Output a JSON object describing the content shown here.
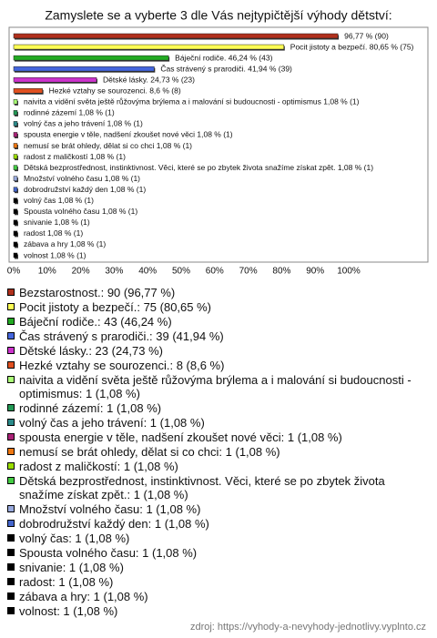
{
  "chart_data": {
    "type": "bar",
    "orientation": "horizontal",
    "title": "Zamyslete se a vyberte 3 dle Vás nejtypičtější výhody dětství:",
    "categories": [
      "Bezstarostnost.",
      "Pocit jistoty a bezpečí.",
      "Báječní rodiče.",
      "Čas strávený s prarodiči.",
      "Dětské lásky.",
      "Hezké vztahy se sourozenci.",
      "naivita a vidění světa ještě růžovýma brýlema a i malování si budoucnosti - optimismus",
      "rodinné zázemí",
      "volný čas a jeho trávení",
      "spousta energie v těle, nadšení zkoušet nové věci",
      "nemusí se brát ohledy, dělat si co chci",
      "radost z maličkostí",
      "Dětská bezprostřednost, instinktivnost. Věci, které se po zbytek života snažíme získat zpět.",
      "Množství volného času",
      "dobrodružství každý den",
      "volný čas",
      "Spousta volného času",
      "snivanie",
      "radost",
      "zábava a hry",
      "volnost"
    ],
    "values": [
      96.77,
      80.65,
      46.24,
      41.94,
      24.73,
      8.6,
      1.08,
      1.08,
      1.08,
      1.08,
      1.08,
      1.08,
      1.08,
      1.08,
      1.08,
      1.08,
      1.08,
      1.08,
      1.08,
      1.08,
      1.08
    ],
    "value_labels": [
      "96,77 % (90)",
      "Pocit jistoty a bezpečí. 80,65 % (75)",
      "Báječní rodiče. 46,24 % (43)",
      "Čas strávený s prarodiči. 41,94 % (39)",
      "Dětské lásky. 24,73 % (23)",
      "Hezké vztahy se sourozenci. 8,6 % (8)",
      "naivita a vidění světa ještě růžovýma brýlema a i malování si budoucnosti - optimismus 1,08 % (1)",
      "rodinné zázemí 1,08 % (1)",
      "volný čas a jeho trávení 1,08 % (1)",
      "spousta energie v těle, nadšení zkoušet nové věci 1,08 % (1)",
      "nemusí se brát ohledy, dělat si co chci 1,08 % (1)",
      "radost z maličkostí 1,08 % (1)",
      "Dětská bezprostřednost, instinktivnost. Věci, které se po zbytek života snažíme získat zpět. 1,08 % (1)",
      "Množství volného času 1,08 % (1)",
      "dobrodružství každý den 1,08 % (1)",
      "volný čas 1,08 % (1)",
      "Spousta volného času 1,08 % (1)",
      "snivanie 1,08 % (1)",
      "radost 1,08 % (1)",
      "zábava a hry 1,08 % (1)",
      "volnost 1,08 % (1)"
    ],
    "legend_labels": [
      "Bezstarostnost.: 90 (96,77 %)",
      "Pocit jistoty a bezpečí.: 75 (80,65 %)",
      "Báječní rodiče.: 43 (46,24 %)",
      "Čas strávený s prarodiči.: 39 (41,94 %)",
      "Dětské lásky.: 23 (24,73 %)",
      "Hezké vztahy se sourozenci.: 8 (8,6 %)",
      "naivita a vidění světa ještě růžovýma brýlema a i malování si budoucnosti - optimismus: 1 (1,08 %)",
      "rodinné zázemí: 1 (1,08 %)",
      "volný čas a jeho trávení: 1 (1,08 %)",
      "spousta energie v těle, nadšení zkoušet nové věci: 1 (1,08 %)",
      "nemusí se brát ohledy, dělat si co chci: 1 (1,08 %)",
      "radost z maličkostí: 1 (1,08 %)",
      "Dětská bezprostřednost, instinktivnost. Věci, které se po zbytek života snažíme získat zpět.: 1 (1,08 %)",
      "Množství volného času: 1 (1,08 %)",
      "dobrodružství každý den: 1 (1,08 %)",
      "volný čas: 1 (1,08 %)",
      "Spousta volného času: 1 (1,08 %)",
      "snivanie: 1 (1,08 %)",
      "radost: 1 (1,08 %)",
      "zábava a hry: 1 (1,08 %)",
      "volnost: 1 (1,08 %)"
    ],
    "colors": [
      "#b0301c",
      "#ffff55",
      "#22aa22",
      "#4466dd",
      "#cc33cc",
      "#e05020",
      "#aaff77",
      "#229955",
      "#2a8a8a",
      "#aa2277",
      "#ee7711",
      "#99dd00",
      "#44cc44",
      "#99aadd",
      "#4466cc",
      "#000000",
      "#000000",
      "#000000",
      "#000000",
      "#000000",
      "#000000"
    ],
    "xlim": [
      0,
      100
    ],
    "xticks": [
      {
        "value": 0,
        "label": "0%"
      },
      {
        "value": 10,
        "label": "10%"
      },
      {
        "value": 20,
        "label": "20%"
      },
      {
        "value": 30,
        "label": "30%"
      },
      {
        "value": 40,
        "label": "40%"
      },
      {
        "value": 50,
        "label": "50%"
      },
      {
        "value": 60,
        "label": "60%"
      },
      {
        "value": 70,
        "label": "70%"
      },
      {
        "value": 80,
        "label": "80%"
      },
      {
        "value": 90,
        "label": "90%"
      },
      {
        "value": 100,
        "label": "100%"
      }
    ],
    "source": "zdroj: https://vyhody-a-nevyhody-jednotlivy.vyplnto.cz"
  }
}
